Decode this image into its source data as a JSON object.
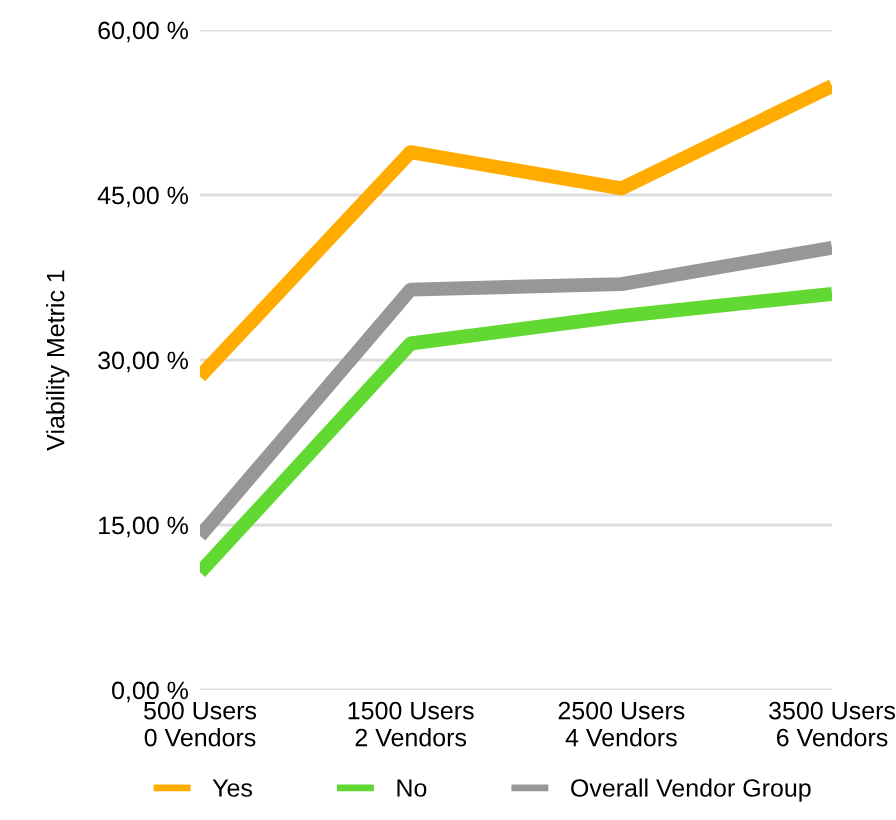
{
  "chart_data": {
    "type": "line",
    "ylabel": "Viability Metric 1",
    "categories": [
      "500 Users\n0 Vendors",
      "1500 Users\n2 Vendors",
      "2500 Users\n4 Vendors",
      "3500 Users\n6 Vendors"
    ],
    "series": [
      {
        "name": "Yes",
        "color": "#ffab00",
        "values": [
          28.5,
          48.9,
          45.6,
          54.9
        ]
      },
      {
        "name": "No",
        "color": "#62d832",
        "values": [
          10.7,
          31.5,
          34.0,
          36.0
        ]
      },
      {
        "name": "Overall Vendor Group",
        "color": "#979797",
        "values": [
          14.0,
          36.4,
          36.9,
          40.2
        ]
      }
    ],
    "ylim": [
      0,
      60
    ],
    "yticks": [
      {
        "value": 0,
        "label": "0,00 %"
      },
      {
        "value": 15,
        "label": "15,00 %"
      },
      {
        "value": 30,
        "label": "30,00 %"
      },
      {
        "value": 45,
        "label": "45,00 %"
      },
      {
        "value": 60,
        "label": "60,00 %"
      }
    ],
    "grid": "y",
    "legend": "bottom",
    "marker": "none",
    "line_style": "solid"
  }
}
